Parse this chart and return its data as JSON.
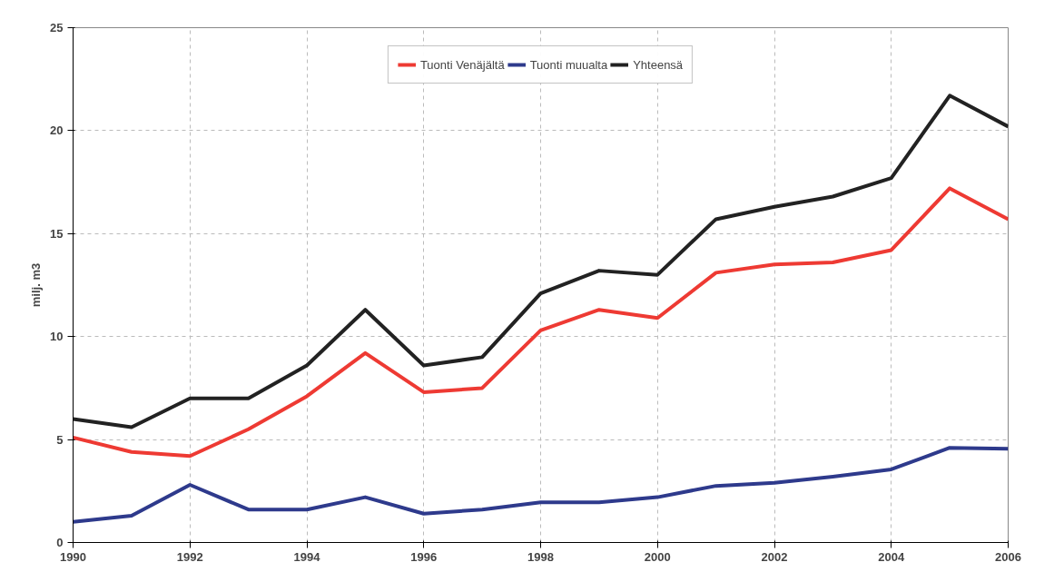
{
  "chart_data": {
    "type": "line",
    "ylabel": "milj. m3",
    "x": [
      1990,
      1991,
      1992,
      1993,
      1994,
      1995,
      1996,
      1997,
      1998,
      1999,
      2000,
      2001,
      2002,
      2003,
      2004,
      2005,
      2006
    ],
    "series": [
      {
        "name": "Tuonti Venäjältä",
        "color": "#ee3a33",
        "values": [
          5.1,
          4.4,
          4.2,
          5.5,
          7.1,
          9.2,
          7.3,
          7.5,
          10.3,
          11.3,
          10.9,
          13.1,
          13.5,
          13.6,
          14.2,
          17.2,
          15.7
        ]
      },
      {
        "name": "Tuonti muualta",
        "color": "#2e3a8c",
        "values": [
          1.0,
          1.3,
          2.8,
          1.6,
          1.6,
          2.2,
          1.4,
          1.6,
          1.95,
          1.95,
          2.2,
          2.75,
          2.9,
          3.2,
          3.55,
          4.6,
          4.55
        ]
      },
      {
        "name": "Yhteensä",
        "color": "#222222",
        "values": [
          6.0,
          5.6,
          7.0,
          7.0,
          8.6,
          11.3,
          8.6,
          9.0,
          12.1,
          13.2,
          13.0,
          15.7,
          16.3,
          16.8,
          17.7,
          21.7,
          20.2
        ]
      }
    ],
    "xlim": [
      1990,
      2006
    ],
    "xticks": [
      1990,
      1992,
      1994,
      1996,
      1998,
      2000,
      2002,
      2004,
      2006
    ],
    "ylim": [
      0,
      25
    ],
    "yticks": [
      0,
      5,
      10,
      15,
      20,
      25
    ],
    "grid": true,
    "legend": "top",
    "line_style": "solid",
    "marker": "none"
  }
}
